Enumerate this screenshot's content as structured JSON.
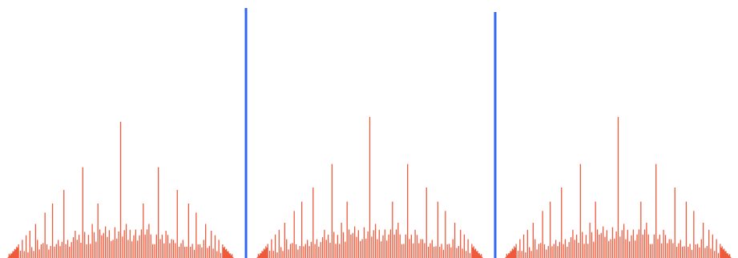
{
  "colors": {
    "background": "#ffffff",
    "ruler_ticks": "#f05a3c",
    "divider": "#2f66f0"
  },
  "panels": [
    {
      "name": "ruler-panel-1"
    },
    {
      "name": "ruler-panel-2"
    },
    {
      "name": "ruler-panel-3"
    }
  ],
  "dividers": [
    {
      "name": "divider-line-1"
    },
    {
      "name": "divider-line-2"
    }
  ]
}
